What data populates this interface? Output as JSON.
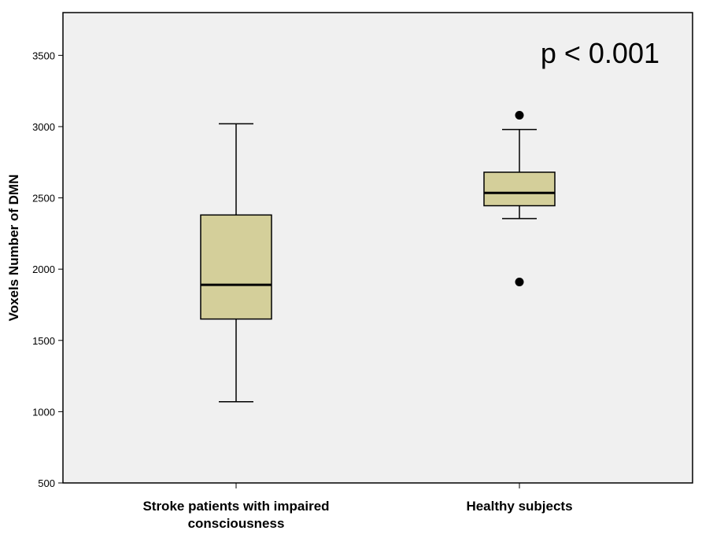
{
  "chart_data": {
    "type": "boxplot",
    "ylabel": "Voxels Number of DMN",
    "ylim": [
      500,
      3800
    ],
    "yticks": [
      500,
      1000,
      1500,
      2000,
      2500,
      3000,
      3500
    ],
    "ytick_labels": [
      "500",
      "1000",
      "1500",
      "2000",
      "2500",
      "3000",
      "3500"
    ],
    "categories": [
      {
        "label_lines": [
          "Stroke patients with impaired",
          "consciousness"
        ]
      },
      {
        "label_lines": [
          "Healthy subjects"
        ]
      }
    ],
    "boxes": [
      {
        "whisker_low": 1070,
        "q1": 1650,
        "median": 1890,
        "q3": 2380,
        "whisker_high": 3020,
        "outliers": []
      },
      {
        "whisker_low": 2355,
        "q1": 2445,
        "median": 2535,
        "q3": 2680,
        "whisker_high": 2980,
        "outliers": [
          3080,
          1910
        ]
      }
    ],
    "annotation": "p < 0.001",
    "grid": false,
    "colors": {
      "box_fill": "#d4cf9a",
      "plot_background": "#f0f0f0",
      "line": "#000000"
    }
  }
}
